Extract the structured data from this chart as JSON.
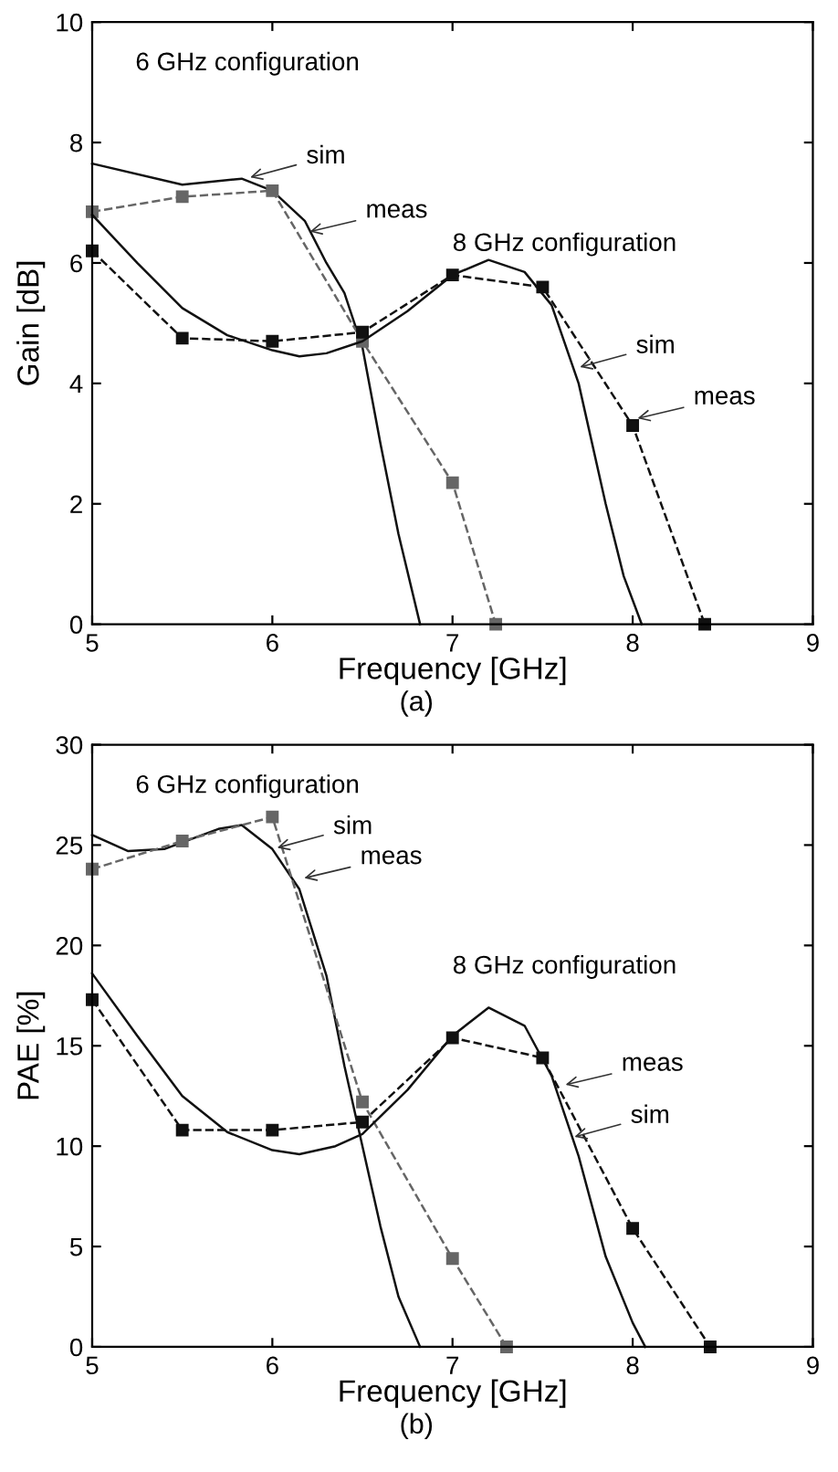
{
  "chart_data": [
    {
      "type": "line",
      "xlabel": "Frequency [GHz]",
      "ylabel": "Gain [dB]",
      "xlim": [
        5,
        9
      ],
      "xticks": [
        5,
        6,
        7,
        8,
        9
      ],
      "ylim": [
        0,
        10
      ],
      "yticks": [
        0,
        2,
        4,
        6,
        8,
        10
      ],
      "grid": false,
      "legend": false,
      "annotations": [
        "6 GHz configuration",
        "8 GHz configuration",
        "(a)",
        {
          "text": "sim",
          "x": 5.85,
          "y": 7.4
        },
        {
          "text": "meas",
          "x": 6.18,
          "y": 6.5
        },
        {
          "text": "sim",
          "x": 7.68,
          "y": 4.25
        },
        {
          "text": "meas",
          "x": 8.0,
          "y": 3.4
        }
      ],
      "series": [
        {
          "color": "#111111",
          "line_style": "solid",
          "marker": "none",
          "x": [
            5.0,
            5.5,
            5.83,
            6.0,
            6.18,
            6.3,
            6.4,
            6.5,
            6.6,
            6.7,
            6.82
          ],
          "values": [
            7.65,
            7.3,
            7.4,
            7.2,
            6.7,
            6.0,
            5.5,
            4.6,
            3.0,
            1.5,
            0
          ]
        },
        {
          "color": "#666666",
          "line_style": "dashed",
          "marker": "square",
          "x": [
            5.0,
            5.5,
            6.0,
            6.5,
            7.0,
            7.24
          ],
          "values": [
            6.85,
            7.1,
            7.2,
            4.7,
            2.35,
            0
          ]
        },
        {
          "color": "#111111",
          "line_style": "solid",
          "marker": "none",
          "x": [
            5.0,
            5.25,
            5.5,
            5.75,
            6.0,
            6.15,
            6.3,
            6.5,
            6.75,
            7.0,
            7.2,
            7.4,
            7.55,
            7.7,
            7.85,
            7.95,
            8.05
          ],
          "values": [
            6.8,
            6.0,
            5.25,
            4.8,
            4.55,
            4.45,
            4.5,
            4.7,
            5.2,
            5.8,
            6.05,
            5.85,
            5.3,
            4.0,
            2.0,
            0.8,
            0
          ]
        },
        {
          "color": "#111111",
          "line_style": "dashed",
          "marker": "square",
          "x": [
            5.0,
            5.5,
            6.0,
            6.5,
            7.0,
            7.5,
            8.0,
            8.4
          ],
          "values": [
            6.2,
            4.75,
            4.7,
            4.85,
            5.8,
            5.6,
            3.3,
            0
          ]
        }
      ]
    },
    {
      "type": "line",
      "xlabel": "Frequency [GHz]",
      "ylabel": "PAE [%]",
      "xlim": [
        5,
        9
      ],
      "xticks": [
        5,
        6,
        7,
        8,
        9
      ],
      "ylim": [
        0,
        30
      ],
      "yticks": [
        0,
        5,
        10,
        15,
        20,
        25,
        30
      ],
      "grid": false,
      "legend": false,
      "annotations": [
        "6 GHz configuration",
        "8 GHz configuration",
        "(b)",
        {
          "text": "sim",
          "x": 6.0,
          "y": 24.8
        },
        {
          "text": "meas",
          "x": 6.15,
          "y": 23.3
        },
        {
          "text": "meas",
          "x": 7.6,
          "y": 13
        },
        {
          "text": "sim",
          "x": 7.65,
          "y": 10.4
        }
      ],
      "series": [
        {
          "color": "#111111",
          "line_style": "solid",
          "marker": "none",
          "x": [
            5.0,
            5.2,
            5.4,
            5.7,
            5.83,
            6.0,
            6.15,
            6.3,
            6.4,
            6.5,
            6.6,
            6.7,
            6.82
          ],
          "values": [
            25.5,
            24.7,
            24.8,
            25.8,
            26.0,
            24.8,
            22.8,
            18.5,
            14,
            10,
            6,
            2.5,
            0
          ]
        },
        {
          "color": "#666666",
          "line_style": "dashed",
          "marker": "square",
          "x": [
            5.0,
            5.5,
            6.0,
            6.5,
            7.0,
            7.3
          ],
          "values": [
            23.8,
            25.2,
            26.4,
            12.2,
            4.4,
            0
          ]
        },
        {
          "color": "#111111",
          "line_style": "solid",
          "marker": "none",
          "x": [
            5.0,
            5.25,
            5.5,
            5.75,
            6.0,
            6.15,
            6.35,
            6.5,
            6.75,
            7.0,
            7.2,
            7.4,
            7.55,
            7.7,
            7.85,
            8.0,
            8.07
          ],
          "values": [
            18.6,
            15.5,
            12.5,
            10.7,
            9.8,
            9.6,
            10.0,
            10.6,
            12.8,
            15.5,
            16.9,
            16.0,
            13.5,
            9.5,
            4.5,
            1.2,
            0
          ]
        },
        {
          "color": "#111111",
          "line_style": "dashed",
          "marker": "square",
          "x": [
            5.0,
            5.5,
            6.0,
            6.5,
            7.0,
            7.5,
            8.0,
            8.43
          ],
          "values": [
            17.3,
            10.8,
            10.8,
            11.2,
            15.4,
            14.4,
            5.9,
            0
          ]
        }
      ]
    }
  ]
}
